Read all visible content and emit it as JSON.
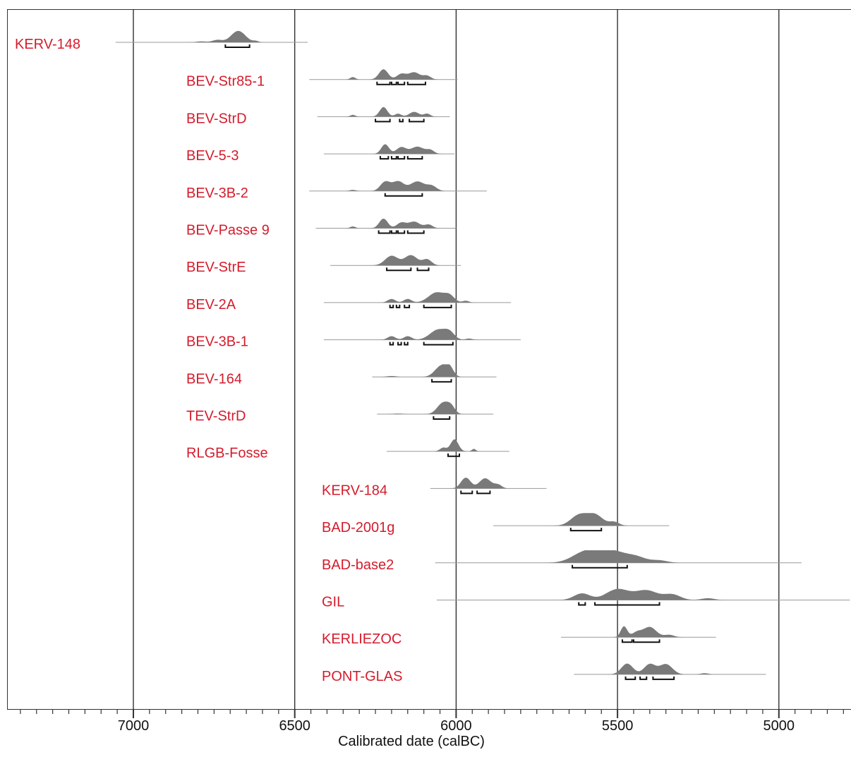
{
  "chart_data": {
    "type": "scatter",
    "subtype": "radiocarbon-calibrated-probability-distributions",
    "title": "",
    "xlabel": "Calibrated date (calBC)",
    "ylabel": "",
    "x_reversed": true,
    "xlim": [
      7400,
      4780
    ],
    "xticks": [
      7000,
      6500,
      6000,
      5500,
      5000
    ],
    "minor_tick_step": 50,
    "vertical_gridlines": [
      7000,
      6500,
      6000,
      5500,
      5000
    ],
    "legend": "none",
    "colors": {
      "label": "#d41c2c",
      "distribution": "#7a7a7a",
      "axis": "#333333",
      "range_bar": "#111111"
    },
    "samples": [
      {
        "label": "KERV-148",
        "range": [
          7055,
          6460
        ],
        "modes": [
          [
            6675,
            0.95,
            22
          ],
          [
            6740,
            0.2,
            15
          ],
          [
            6790,
            0.08,
            15
          ],
          [
            6620,
            0.1,
            8
          ]
        ],
        "hpd": [
          [
            6715,
            6640
          ]
        ]
      },
      {
        "label": "BEV-Str85-1",
        "range": [
          6455,
          5995
        ],
        "modes": [
          [
            6225,
            0.85,
            14
          ],
          [
            6170,
            0.45,
            14
          ],
          [
            6130,
            0.6,
            18
          ],
          [
            6090,
            0.3,
            12
          ],
          [
            6320,
            0.2,
            8
          ]
        ],
        "hpd": [
          [
            6245,
            6205
          ],
          [
            6200,
            6185
          ],
          [
            6180,
            6160
          ],
          [
            6150,
            6095
          ]
        ]
      },
      {
        "label": "BEV-StrD",
        "range": [
          6430,
          6020
        ],
        "modes": [
          [
            6225,
            0.8,
            12
          ],
          [
            6180,
            0.25,
            10
          ],
          [
            6130,
            0.4,
            15
          ],
          [
            6090,
            0.25,
            10
          ],
          [
            6320,
            0.15,
            8
          ]
        ],
        "hpd": [
          [
            6250,
            6205
          ],
          [
            6175,
            6165
          ],
          [
            6145,
            6100
          ]
        ]
      },
      {
        "label": "BEV-5-3",
        "range": [
          6410,
          6005
        ],
        "modes": [
          [
            6220,
            0.8,
            12
          ],
          [
            6170,
            0.55,
            15
          ],
          [
            6120,
            0.6,
            20
          ],
          [
            6080,
            0.3,
            12
          ]
        ],
        "hpd": [
          [
            6235,
            6210
          ],
          [
            6200,
            6185
          ],
          [
            6180,
            6160
          ],
          [
            6150,
            6105
          ]
        ]
      },
      {
        "label": "BEV-3B-2",
        "range": [
          6455,
          5905
        ],
        "modes": [
          [
            6220,
            0.75,
            15
          ],
          [
            6180,
            0.8,
            18
          ],
          [
            6120,
            0.8,
            22
          ],
          [
            6075,
            0.4,
            15
          ],
          [
            6320,
            0.1,
            10
          ]
        ],
        "hpd": [
          [
            6220,
            6105
          ]
        ]
      },
      {
        "label": "BEV-Passe 9",
        "range": [
          6435,
          6000
        ],
        "modes": [
          [
            6225,
            0.8,
            13
          ],
          [
            6170,
            0.45,
            14
          ],
          [
            6130,
            0.55,
            18
          ],
          [
            6085,
            0.3,
            12
          ],
          [
            6320,
            0.15,
            8
          ]
        ],
        "hpd": [
          [
            6240,
            6205
          ],
          [
            6200,
            6185
          ],
          [
            6180,
            6160
          ],
          [
            6150,
            6100
          ]
        ]
      },
      {
        "label": "BEV-StrE",
        "range": [
          6390,
          5985
        ],
        "modes": [
          [
            6200,
            0.8,
            20
          ],
          [
            6140,
            0.85,
            20
          ],
          [
            6090,
            0.5,
            14
          ]
        ],
        "hpd": [
          [
            6215,
            6140
          ],
          [
            6120,
            6085
          ]
        ]
      },
      {
        "label": "BEV-2A",
        "range": [
          6410,
          5830
        ],
        "modes": [
          [
            6060,
            0.85,
            25
          ],
          [
            6020,
            0.5,
            15
          ],
          [
            6200,
            0.3,
            12
          ],
          [
            6150,
            0.3,
            12
          ],
          [
            5970,
            0.15,
            10
          ]
        ],
        "hpd": [
          [
            6205,
            6195
          ],
          [
            6185,
            6175
          ],
          [
            6160,
            6145
          ],
          [
            6100,
            6015
          ]
        ]
      },
      {
        "label": "BEV-3B-1",
        "range": [
          6410,
          5800
        ],
        "modes": [
          [
            6055,
            0.85,
            25
          ],
          [
            6020,
            0.5,
            15
          ],
          [
            6200,
            0.3,
            12
          ],
          [
            6150,
            0.3,
            12
          ],
          [
            5960,
            0.1,
            10
          ]
        ],
        "hpd": [
          [
            6205,
            6195
          ],
          [
            6180,
            6170
          ],
          [
            6160,
            6150
          ],
          [
            6100,
            6010
          ]
        ]
      },
      {
        "label": "BEV-164",
        "range": [
          6260,
          5875
        ],
        "modes": [
          [
            6045,
            0.95,
            20
          ],
          [
            6020,
            0.6,
            12
          ],
          [
            6200,
            0.08,
            15
          ]
        ],
        "hpd": [
          [
            6075,
            6015
          ]
        ]
      },
      {
        "label": "TEV-StrD",
        "range": [
          6245,
          5885
        ],
        "modes": [
          [
            6040,
            0.95,
            18
          ],
          [
            6015,
            0.5,
            12
          ],
          [
            6180,
            0.05,
            15
          ]
        ],
        "hpd": [
          [
            6070,
            6020
          ]
        ]
      },
      {
        "label": "RLGB-Fosse",
        "range": [
          6215,
          5835
        ],
        "modes": [
          [
            6005,
            1.0,
            12
          ],
          [
            6040,
            0.3,
            10
          ],
          [
            5945,
            0.2,
            6
          ]
        ],
        "hpd": [
          [
            6025,
            5990
          ]
        ]
      },
      {
        "label": "KERV-184",
        "range": [
          6080,
          5720
        ],
        "modes": [
          [
            5970,
            0.9,
            15
          ],
          [
            5910,
            0.85,
            18
          ],
          [
            5870,
            0.3,
            12
          ]
        ],
        "hpd": [
          [
            5985,
            5950
          ],
          [
            5935,
            5895
          ]
        ]
      },
      {
        "label": "BAD-2001g",
        "range": [
          5885,
          5340
        ],
        "modes": [
          [
            5620,
            0.85,
            25
          ],
          [
            5570,
            0.9,
            25
          ],
          [
            5510,
            0.3,
            15
          ]
        ],
        "hpd": [
          [
            5645,
            5550
          ]
        ]
      },
      {
        "label": "BAD-base2",
        "range": [
          6065,
          4930
        ],
        "modes": [
          [
            5600,
            0.85,
            40
          ],
          [
            5520,
            1.0,
            45
          ],
          [
            5440,
            0.4,
            30
          ],
          [
            5370,
            0.2,
            25
          ]
        ],
        "hpd": [
          [
            5640,
            5470
          ]
        ]
      },
      {
        "label": "GIL",
        "range": [
          6060,
          4780
        ],
        "modes": [
          [
            5610,
            0.55,
            25
          ],
          [
            5500,
            0.9,
            35
          ],
          [
            5410,
            0.8,
            35
          ],
          [
            5330,
            0.45,
            25
          ],
          [
            5220,
            0.15,
            20
          ]
        ],
        "hpd": [
          [
            5620,
            5600
          ],
          [
            5570,
            5370
          ]
        ]
      },
      {
        "label": "KERLIEZOC",
        "range": [
          5675,
          5195
        ],
        "modes": [
          [
            5480,
            0.9,
            10
          ],
          [
            5400,
            0.85,
            20
          ],
          [
            5440,
            0.4,
            15
          ],
          [
            5340,
            0.2,
            15
          ]
        ],
        "hpd": [
          [
            5485,
            5455
          ],
          [
            5450,
            5370
          ]
        ]
      },
      {
        "label": "PONT-GLAS",
        "range": [
          5635,
          5040
        ],
        "modes": [
          [
            5470,
            0.9,
            18
          ],
          [
            5400,
            0.85,
            18
          ],
          [
            5350,
            0.85,
            20
          ],
          [
            5230,
            0.1,
            12
          ]
        ],
        "hpd": [
          [
            5475,
            5445
          ],
          [
            5430,
            5410
          ],
          [
            5390,
            5325
          ]
        ]
      }
    ]
  }
}
